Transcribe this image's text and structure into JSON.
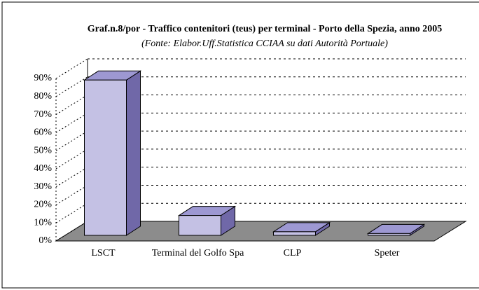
{
  "chart_data": {
    "type": "bar3d",
    "title": "Graf.n.8/por - Traffico contenitori (teus) per terminal - Porto della Spezia, anno 2005",
    "subtitle": "(Fonte: Elabor.Uff.Statistica CCIAA su dati Autorità Portuale)",
    "categories": [
      "LSCT",
      "Terminal del Golfo Spa",
      "CLP",
      "Speter"
    ],
    "values": [
      86,
      11,
      2,
      1
    ],
    "color": "#c4c1e4",
    "ylim": [
      0,
      90
    ],
    "yticks": [
      {
        "value": 0,
        "label": "0%"
      },
      {
        "value": 10,
        "label": "10%"
      },
      {
        "value": 20,
        "label": "20%"
      },
      {
        "value": 30,
        "label": "30%"
      },
      {
        "value": 40,
        "label": "40%"
      },
      {
        "value": 50,
        "label": "50%"
      },
      {
        "value": 60,
        "label": "60%"
      },
      {
        "value": 70,
        "label": "70%"
      },
      {
        "value": 80,
        "label": "80%"
      },
      {
        "value": 90,
        "label": "90%"
      }
    ],
    "grid": true
  }
}
